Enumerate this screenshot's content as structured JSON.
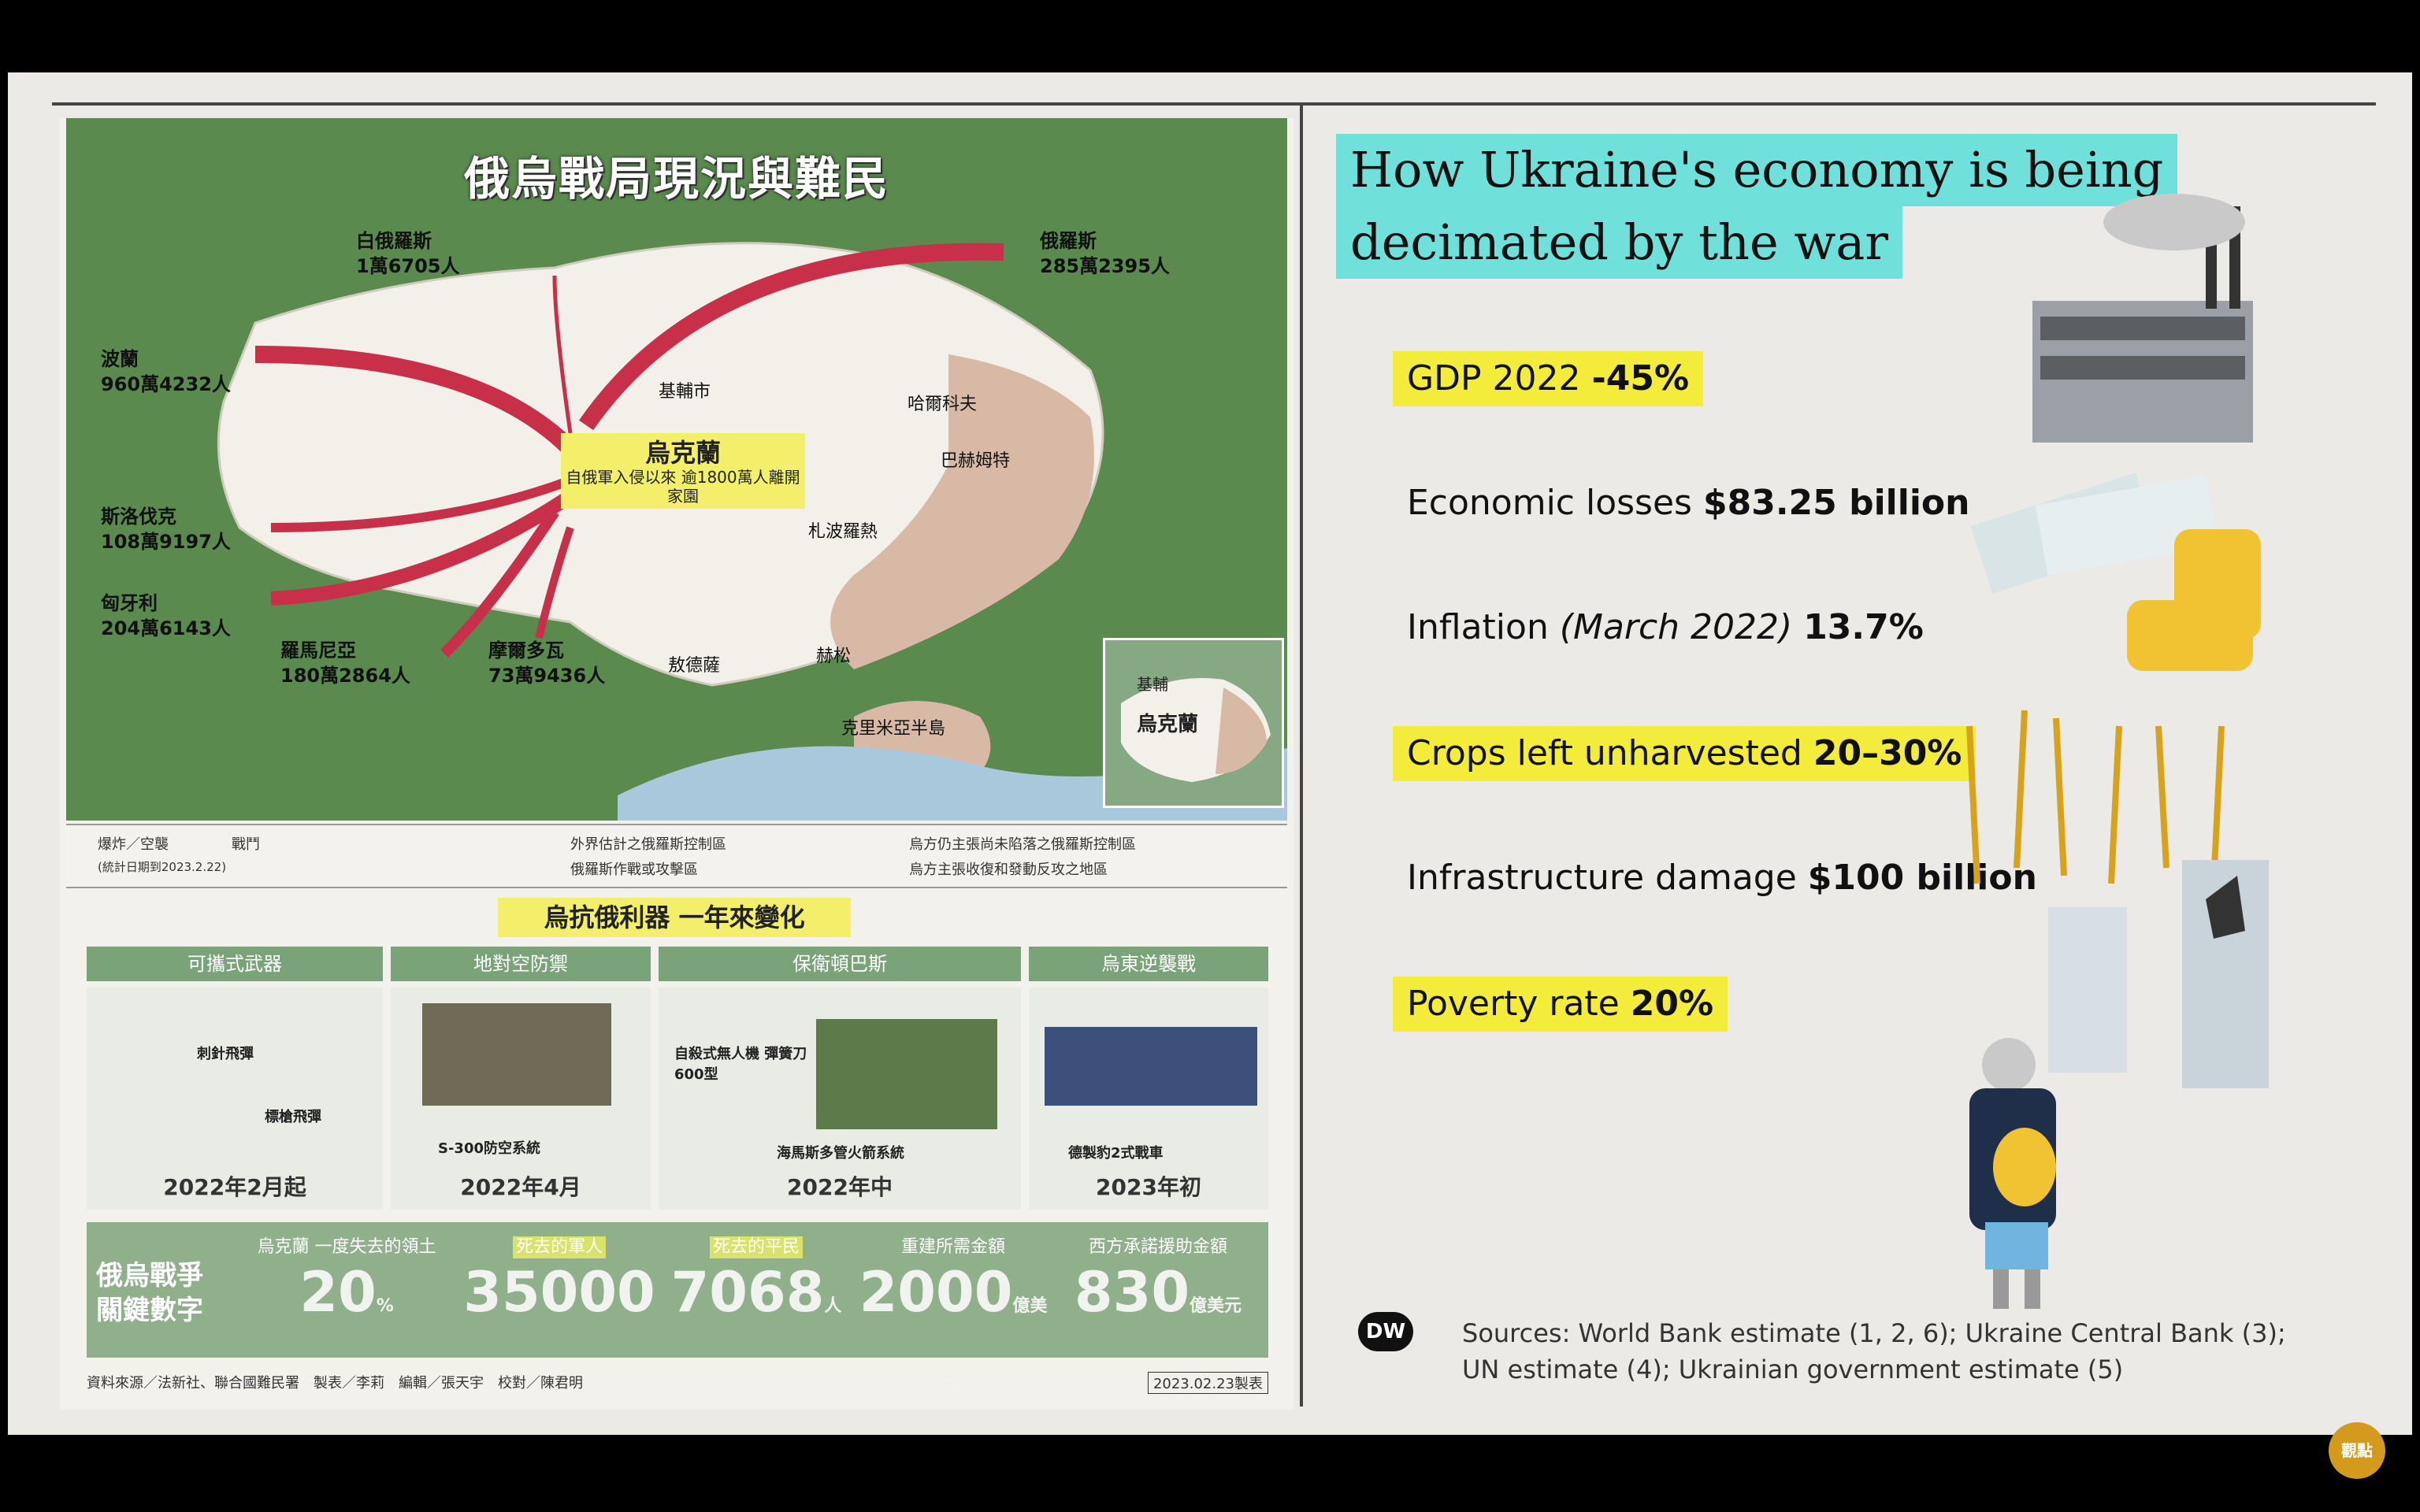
{
  "map": {
    "title": "俄烏戰局現況與難民",
    "center_title": "烏克蘭",
    "center_sub": "自俄軍入侵以來 逾1800萬人離開家園",
    "flows": [
      {
        "name": "白俄羅斯",
        "value": "1萬6705人"
      },
      {
        "name": "俄羅斯",
        "value": "285萬2395人"
      },
      {
        "name": "波蘭",
        "value": "960萬4232人"
      },
      {
        "name": "斯洛伐克",
        "value": "108萬9197人"
      },
      {
        "name": "匈牙利",
        "value": "204萬6143人"
      },
      {
        "name": "羅馬尼亞",
        "value": "180萬2864人"
      },
      {
        "name": "摩爾多瓦",
        "value": "73萬9436人"
      }
    ],
    "cities": [
      "基輔市",
      "哈爾科夫",
      "巴赫姆特",
      "札波羅熱",
      "赫松",
      "敖德薩",
      "克里米亞半島"
    ],
    "inset_label": "烏克蘭",
    "inset_city": "基輔"
  },
  "legend": {
    "item1": "爆炸／空襲",
    "item2": "戰鬥",
    "date": "(統計日期到2023.2.22)",
    "key1": "外界估計之俄羅斯控制區",
    "key2": "俄羅斯作戰或攻擊區",
    "key3": "烏方仍主張尚未陷落之俄羅斯控制區",
    "key4": "烏方主張收復和發動反攻之地區"
  },
  "timeline": {
    "title": "烏抗俄利器 一年來變化",
    "phases": [
      {
        "label": "可攜式武器",
        "date": "2022年2月起",
        "captions": [
          "刺針飛彈",
          "標槍飛彈"
        ]
      },
      {
        "label": "地對空防禦",
        "date": "2022年4月",
        "captions": [
          "S-300防空系統"
        ]
      },
      {
        "label": "保衛頓巴斯",
        "date": "2022年中",
        "captions": [
          "自殺式無人機 彈簧刀600型",
          "海馬斯多管火箭系統"
        ]
      },
      {
        "label": "烏東逆襲戰",
        "date": "2023年初",
        "captions": [
          "德製豹2式戰車"
        ]
      }
    ]
  },
  "stats": {
    "label": "俄烏戰爭 關鍵數字",
    "items": [
      {
        "head": "烏克蘭 一度失去的領土",
        "value": "20",
        "unit": "%"
      },
      {
        "head": "死去的軍人",
        "value": "35000",
        "unit": "人"
      },
      {
        "head": "死去的平民",
        "value": "7068",
        "unit": "人"
      },
      {
        "head": "重建所需金額",
        "value": "2000",
        "unit": "億美元"
      },
      {
        "head": "西方承諾援助金額",
        "value": "830",
        "unit": "億美元"
      }
    ]
  },
  "credits": "資料來源／法新社、聯合國難民署　製表／李莉　編輯／張天宇　校對／陳君明",
  "credits_date": "2023.02.23製表",
  "right": {
    "title_line1": "How Ukraine's economy is being",
    "title_line2": "decimated by the war",
    "rows": [
      {
        "pre": "GDP 2022 ",
        "italic": "",
        "bold": "-45%",
        "highlight": true
      },
      {
        "pre": "Economic losses ",
        "italic": "",
        "bold": "$83.25 billion",
        "highlight": false
      },
      {
        "pre": "Inflation ",
        "italic": "(March 2022) ",
        "bold": "13.7%",
        "highlight": false
      },
      {
        "pre": "Crops left unharvested ",
        "italic": "",
        "bold": "20–30%",
        "highlight": true
      },
      {
        "pre": "Infrastructure damage ",
        "italic": "",
        "bold": "$100 billion",
        "highlight": false
      },
      {
        "pre": "Poverty rate ",
        "italic": "",
        "bold": "20%",
        "highlight": true
      }
    ],
    "source_line1": "Sources: World Bank estimate (1, 2, 6); Ukraine Central Bank (3);",
    "source_line2": "UN estimate (4); Ukrainian government estimate (5)",
    "dw_logo": "DW"
  },
  "corner_logo": "觀點",
  "colors": {
    "map_green": "#5a8a4e",
    "highlight_yellow": "#f3ec3b",
    "title_teal": "#6fe0da",
    "arrow_red": "#c8304a"
  }
}
